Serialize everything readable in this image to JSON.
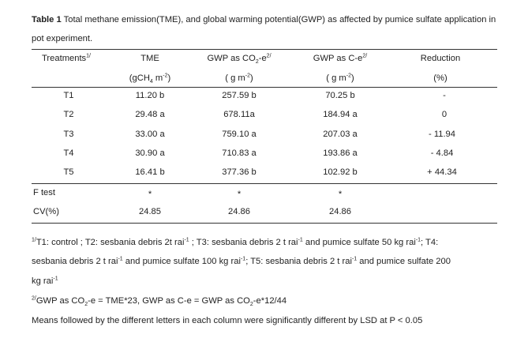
{
  "caption": {
    "label": "Table 1",
    "text": "Total methane emission(TME), and global warming  potential(GWP) as affected by pumice sulfate application in pot experiment."
  },
  "header": {
    "treatments": "Treatments",
    "treatments_sup": "1/",
    "tme": "TME",
    "tme_unit_pre": "(gCH",
    "tme_unit_sub": "4",
    "tme_unit_mid": " m",
    "tme_unit_sup": "-2",
    "tme_unit_post": ")",
    "gwp_co2_pre": "GWP as CO",
    "gwp_co2_sub": "2",
    "gwp_co2_post": "-e",
    "gwp_co2_sup": "2/",
    "gwp_co2_unit_pre": "( g m",
    "gwp_co2_unit_sup": "-2",
    "gwp_co2_unit_post": ")",
    "gwp_c": "GWP as C-e",
    "gwp_c_sup": "2/",
    "gwp_c_unit_pre": "( g m",
    "gwp_c_unit_sup": "-2",
    "gwp_c_unit_post": ")",
    "reduction": "Reduction",
    "reduction_unit": "(%)"
  },
  "rows": [
    {
      "t": "T1",
      "tme": "11.20 b",
      "co2": "257.59 b",
      "c": "70.25 b",
      "red": "-"
    },
    {
      "t": "T2",
      "tme": "29.48 a",
      "co2": "678.11a",
      "c": "184.94 a",
      "red": "0"
    },
    {
      "t": "T3",
      "tme": "33.00 a",
      "co2": "759.10 a",
      "c": "207.03 a",
      "red": "- 11.94"
    },
    {
      "t": "T4",
      "tme": "30.90 a",
      "co2": "710.83 a",
      "c": "193.86 a",
      "red": "- 4.84"
    },
    {
      "t": "T5",
      "tme": "16.41 b",
      "co2": "377.36 b",
      "c": "102.92 b",
      "red": "+ 44.34"
    }
  ],
  "stats": [
    {
      "label": "F test",
      "tme": "*",
      "co2": "*",
      "c": "*"
    },
    {
      "label": "CV(%)",
      "tme": "24.85",
      "co2": "24.86",
      "c": "24.86"
    }
  ],
  "notes": {
    "n1_sup": "1/",
    "n1_a": "T1:  control ; T2:  sesbania debris 2t rai",
    "n1_b": " ; T3:  sesbania debris 2 t rai",
    "n1_c": "  and pumice sulfate 50 kg rai",
    "n1_d": "; T4:",
    "n1_e": "sesbania debris 2 t rai",
    "n1_f": "  and pumice sulfate 100 kg rai",
    "n1_g": "; T5:  sesbania debris 2 t rai",
    "n1_h": "  and pumice sulfate 200",
    "n1_i": "kg rai",
    "inv": "-1",
    "n2_sup": "2/",
    "n2_a": "GWP as CO",
    "n2_b": "-e = TME*23, GWP as C-e = GWP as CO",
    "n2_c": "-e*12/44",
    "n2_sub": "2",
    "n3": "Means followed by the different letters in each column were significantly different by LSD at P < 0.05"
  }
}
